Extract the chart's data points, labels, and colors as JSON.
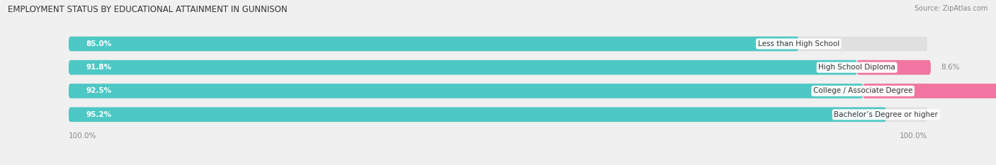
{
  "title": "EMPLOYMENT STATUS BY EDUCATIONAL ATTAINMENT IN GUNNISON",
  "source": "Source: ZipAtlas.com",
  "categories": [
    "Less than High School",
    "High School Diploma",
    "College / Associate Degree",
    "Bachelor’s Degree or higher"
  ],
  "in_labor_force": [
    85.0,
    91.8,
    92.5,
    95.2
  ],
  "unemployed": [
    0.0,
    8.6,
    15.7,
    0.0
  ],
  "bar_color_labor": "#4DC8C4",
  "bar_color_unemployed": "#F075A0",
  "bg_color": "#f0f0f0",
  "bar_bg_color": "#e0e0e0",
  "axis_label_left": "100.0%",
  "axis_label_right": "100.0%",
  "bar_height": 0.62,
  "figsize": [
    14.06,
    2.33
  ],
  "dpi": 100,
  "xlim_left": -8,
  "xlim_right": 108
}
